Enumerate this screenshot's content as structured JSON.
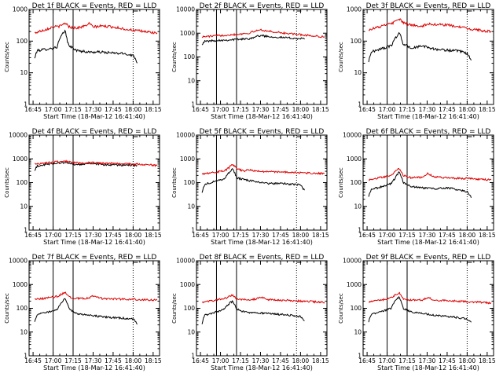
{
  "figure": {
    "layout": {
      "rows": 3,
      "cols": 3
    },
    "colors": {
      "events": "#000000",
      "lld": "#dd0000",
      "axes": "#000000",
      "background": "#ffffff"
    }
  },
  "common": {
    "xlabel": "Start Time (18-Mar-12 16:41:40)",
    "ylabel": "Counts/sec",
    "x_tick_labels": [
      "16:45",
      "17:00",
      "17:15",
      "17:30",
      "17:45",
      "18:00",
      "18:15"
    ],
    "x_tick_hours": [
      16.75,
      17.0,
      17.25,
      17.5,
      17.75,
      18.0,
      18.25
    ],
    "xlim_hours": [
      16.7,
      18.33
    ],
    "y_scale": "log"
  },
  "chart_data": [
    {
      "type": "line",
      "title": "Det 1f BLACK = Events, RED = LLD",
      "ylim": [
        1,
        1000
      ],
      "y_tick_labels": [
        "1",
        "10",
        "100",
        "1000"
      ],
      "solid_vlines_hours": [
        17.0,
        17.25
      ],
      "dotted_vlines_hours": [
        18.0,
        18.33
      ],
      "series": [
        {
          "name": "Events",
          "color": "#000000",
          "x_hours": [
            16.77,
            16.8,
            16.9,
            17.0,
            17.05,
            17.1,
            17.15,
            17.18,
            17.22,
            17.3,
            17.45,
            17.6,
            17.75,
            17.9,
            18.0,
            18.05
          ],
          "values": [
            28,
            50,
            55,
            60,
            65,
            140,
            210,
            90,
            65,
            50,
            45,
            45,
            42,
            40,
            35,
            22
          ]
        },
        {
          "name": "LLD",
          "color": "#dd0000",
          "x_hours": [
            16.77,
            16.9,
            17.0,
            17.1,
            17.15,
            17.2,
            17.3,
            17.4,
            17.45,
            17.5,
            17.6,
            17.75,
            17.9,
            18.0,
            18.15,
            18.3
          ],
          "values": [
            180,
            230,
            280,
            300,
            380,
            280,
            260,
            300,
            360,
            280,
            300,
            280,
            240,
            220,
            200,
            180
          ]
        }
      ]
    },
    {
      "type": "line",
      "title": "Det 2f BLACK = Events, RED = LLD",
      "ylim": [
        1,
        10000
      ],
      "y_tick_labels": [
        "1",
        "10",
        "100",
        "1000",
        "10000"
      ],
      "solid_vlines_hours": [
        16.95,
        17.2
      ],
      "dotted_vlines_hours": [
        17.95,
        18.33
      ],
      "series": [
        {
          "name": "Events",
          "color": "#000000",
          "x_hours": [
            16.77,
            16.8,
            16.95,
            17.1,
            17.2,
            17.35,
            17.5,
            17.65,
            17.8,
            17.95,
            18.05
          ],
          "values": [
            350,
            450,
            500,
            520,
            550,
            580,
            800,
            700,
            650,
            600,
            580
          ]
        },
        {
          "name": "LLD",
          "color": "#dd0000",
          "x_hours": [
            16.77,
            16.95,
            17.1,
            17.2,
            17.35,
            17.5,
            17.6,
            17.7,
            17.8,
            17.95,
            18.1,
            18.3
          ],
          "values": [
            700,
            780,
            850,
            900,
            1000,
            1400,
            1200,
            1100,
            1000,
            900,
            800,
            700
          ]
        }
      ]
    },
    {
      "type": "line",
      "title": "Det 3f BLACK = Events, RED = LLD",
      "ylim": [
        1,
        1000
      ],
      "y_tick_labels": [
        "1",
        "10",
        "100",
        "1000"
      ],
      "solid_vlines_hours": [
        17.0,
        17.25
      ],
      "dotted_vlines_hours": [
        18.0,
        18.33
      ],
      "series": [
        {
          "name": "Events",
          "color": "#000000",
          "x_hours": [
            16.77,
            16.8,
            16.9,
            17.0,
            17.05,
            17.1,
            17.15,
            17.2,
            17.3,
            17.45,
            17.6,
            17.75,
            17.9,
            18.0,
            18.05
          ],
          "values": [
            22,
            45,
            55,
            65,
            70,
            120,
            180,
            80,
            60,
            70,
            55,
            52,
            48,
            40,
            25
          ]
        },
        {
          "name": "LLD",
          "color": "#dd0000",
          "x_hours": [
            16.77,
            16.9,
            17.0,
            17.1,
            17.15,
            17.2,
            17.3,
            17.45,
            17.5,
            17.6,
            17.75,
            17.9,
            18.0,
            18.15,
            18.3
          ],
          "values": [
            230,
            280,
            330,
            400,
            500,
            380,
            320,
            300,
            350,
            340,
            320,
            280,
            250,
            220,
            200
          ]
        }
      ]
    },
    {
      "type": "line",
      "title": "Det 4f BLACK = Events, RED = LLD",
      "ylim": [
        1,
        10000
      ],
      "y_tick_labels": [
        "1",
        "10",
        "100",
        "1000",
        "10000"
      ],
      "solid_vlines_hours": [
        17.0,
        17.25
      ],
      "dotted_vlines_hours": [
        18.0,
        18.33
      ],
      "series": [
        {
          "name": "Events",
          "color": "#000000",
          "x_hours": [
            16.77,
            16.8,
            16.95,
            17.1,
            17.2,
            17.3,
            17.45,
            17.6,
            17.75,
            17.9,
            18.05
          ],
          "values": [
            300,
            500,
            600,
            700,
            650,
            550,
            650,
            560,
            560,
            550,
            520
          ]
        },
        {
          "name": "LLD",
          "color": "#dd0000",
          "x_hours": [
            16.77,
            16.9,
            17.05,
            17.15,
            17.25,
            17.35,
            17.5,
            17.6,
            17.75,
            17.9,
            18.05,
            18.2,
            18.3
          ],
          "values": [
            600,
            680,
            750,
            820,
            700,
            650,
            700,
            640,
            650,
            620,
            600,
            560,
            520
          ]
        }
      ]
    },
    {
      "type": "line",
      "title": "Det 5f BLACK = Events, RED = LLD",
      "ylim": [
        1,
        10000
      ],
      "y_tick_labels": [
        "1",
        "10",
        "100",
        "1000",
        "10000"
      ],
      "solid_vlines_hours": [
        16.95,
        17.2
      ],
      "dotted_vlines_hours": [
        17.95,
        18.33
      ],
      "series": [
        {
          "name": "Events",
          "color": "#000000",
          "x_hours": [
            16.77,
            16.8,
            16.95,
            17.05,
            17.1,
            17.15,
            17.2,
            17.3,
            17.45,
            17.6,
            17.75,
            17.9,
            18.0,
            18.05
          ],
          "values": [
            40,
            80,
            120,
            140,
            250,
            380,
            160,
            130,
            110,
            90,
            95,
            85,
            80,
            45
          ]
        },
        {
          "name": "LLD",
          "color": "#dd0000",
          "x_hours": [
            16.77,
            16.95,
            17.05,
            17.1,
            17.15,
            17.2,
            17.3,
            17.35,
            17.45,
            17.6,
            17.75,
            17.9,
            18.0,
            18.15,
            18.3
          ],
          "values": [
            240,
            280,
            320,
            400,
            600,
            380,
            300,
            360,
            300,
            290,
            280,
            270,
            260,
            250,
            240
          ]
        }
      ]
    },
    {
      "type": "line",
      "title": "Det 6f BLACK = Events, RED = LLD",
      "ylim": [
        1,
        10000
      ],
      "y_tick_labels": [
        "1",
        "10",
        "100",
        "1000",
        "10000"
      ],
      "solid_vlines_hours": [
        17.0,
        17.25
      ],
      "dotted_vlines_hours": [
        18.0,
        18.33
      ],
      "series": [
        {
          "name": "Events",
          "color": "#000000",
          "x_hours": [
            16.77,
            16.8,
            16.95,
            17.05,
            17.1,
            17.15,
            17.2,
            17.3,
            17.45,
            17.6,
            17.75,
            17.9,
            18.0,
            18.05
          ],
          "values": [
            25,
            50,
            70,
            90,
            150,
            280,
            100,
            70,
            60,
            55,
            60,
            50,
            40,
            25
          ]
        },
        {
          "name": "LLD",
          "color": "#dd0000",
          "x_hours": [
            16.77,
            16.95,
            17.05,
            17.15,
            17.2,
            17.3,
            17.45,
            17.5,
            17.6,
            17.75,
            17.9,
            18.0,
            18.15,
            18.3
          ],
          "values": [
            130,
            170,
            200,
            400,
            200,
            160,
            170,
            240,
            170,
            160,
            150,
            150,
            140,
            130
          ]
        }
      ]
    },
    {
      "type": "line",
      "title": "Det 7f BLACK = Events, RED = LLD",
      "ylim": [
        1,
        10000
      ],
      "y_tick_labels": [
        "1",
        "10",
        "100",
        "1000",
        "10000"
      ],
      "solid_vlines_hours": [
        17.0,
        17.25
      ],
      "dotted_vlines_hours": [
        18.0,
        18.33
      ],
      "series": [
        {
          "name": "Events",
          "color": "#000000",
          "x_hours": [
            16.77,
            16.8,
            16.95,
            17.05,
            17.1,
            17.15,
            17.2,
            17.3,
            17.45,
            17.6,
            17.75,
            17.9,
            18.0,
            18.05
          ],
          "values": [
            25,
            55,
            70,
            90,
            160,
            250,
            90,
            60,
            50,
            45,
            40,
            38,
            35,
            22
          ]
        },
        {
          "name": "LLD",
          "color": "#dd0000",
          "x_hours": [
            16.77,
            16.95,
            17.05,
            17.15,
            17.2,
            17.3,
            17.45,
            17.5,
            17.6,
            17.75,
            17.9,
            18.0,
            18.15,
            18.3
          ],
          "values": [
            230,
            280,
            320,
            450,
            300,
            260,
            270,
            330,
            260,
            250,
            240,
            240,
            230,
            220
          ]
        }
      ]
    },
    {
      "type": "line",
      "title": "Det 8f BLACK = Events, RED = LLD",
      "ylim": [
        1,
        10000
      ],
      "y_tick_labels": [
        "1",
        "10",
        "100",
        "1000",
        "10000"
      ],
      "solid_vlines_hours": [
        16.95,
        17.2
      ],
      "dotted_vlines_hours": [
        17.95,
        18.33
      ],
      "series": [
        {
          "name": "Events",
          "color": "#000000",
          "x_hours": [
            16.77,
            16.8,
            16.95,
            17.05,
            17.1,
            17.15,
            17.2,
            17.3,
            17.45,
            17.6,
            17.75,
            17.9,
            18.0,
            18.05
          ],
          "values": [
            22,
            50,
            70,
            90,
            150,
            200,
            90,
            70,
            65,
            60,
            55,
            50,
            45,
            30
          ]
        },
        {
          "name": "LLD",
          "color": "#dd0000",
          "x_hours": [
            16.77,
            16.95,
            17.05,
            17.15,
            17.2,
            17.3,
            17.45,
            17.5,
            17.6,
            17.75,
            17.9,
            18.0,
            18.15,
            18.3
          ],
          "values": [
            180,
            220,
            260,
            350,
            250,
            230,
            240,
            300,
            230,
            220,
            210,
            200,
            190,
            180
          ]
        }
      ]
    },
    {
      "type": "line",
      "title": "Det 9f BLACK = Events, RED = LLD",
      "ylim": [
        1,
        10000
      ],
      "y_tick_labels": [
        "1",
        "10",
        "100",
        "1000",
        "10000"
      ],
      "solid_vlines_hours": [
        17.0,
        17.25
      ],
      "dotted_vlines_hours": [
        18.0,
        18.33
      ],
      "series": [
        {
          "name": "Events",
          "color": "#000000",
          "x_hours": [
            16.77,
            16.8,
            16.95,
            17.05,
            17.1,
            17.15,
            17.2,
            17.3,
            17.45,
            17.6,
            17.75,
            17.9,
            18.0,
            18.05
          ],
          "values": [
            25,
            55,
            75,
            100,
            200,
            300,
            100,
            70,
            60,
            50,
            45,
            40,
            35,
            25
          ]
        },
        {
          "name": "LLD",
          "color": "#dd0000",
          "x_hours": [
            16.77,
            16.95,
            17.05,
            17.15,
            17.2,
            17.3,
            17.45,
            17.5,
            17.6,
            17.75,
            17.9,
            18.0,
            18.15,
            18.3
          ],
          "values": [
            180,
            230,
            280,
            450,
            260,
            220,
            230,
            280,
            220,
            210,
            200,
            190,
            180,
            170
          ]
        }
      ]
    }
  ]
}
